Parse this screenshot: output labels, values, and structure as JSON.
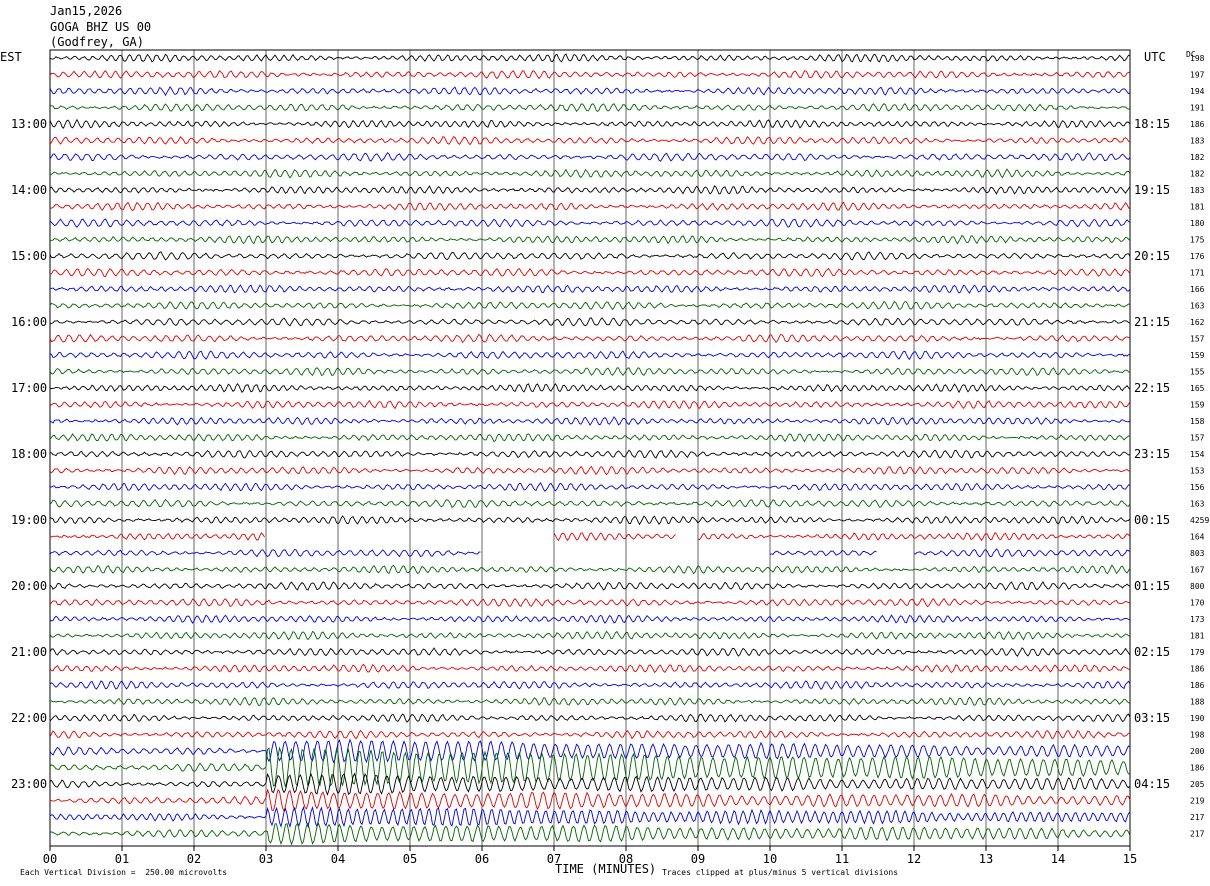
{
  "header": {
    "date": "Jan15,2026",
    "station": "GOGA BHZ US 00",
    "location": "(Godfrey, GA)"
  },
  "left_tz": "EST",
  "right_tz": "UTC",
  "dc_label": "DC",
  "footer": {
    "scale_note": "Each Vertical Division =  250.00 microvolts",
    "clip_note": "Traces clipped at plus/minus 5 vertical divisions"
  },
  "chart_data": {
    "type": "line",
    "title": "",
    "xlabel": "TIME (MINUTES)",
    "x_ticks": [
      "00",
      "01",
      "02",
      "03",
      "04",
      "05",
      "06",
      "07",
      "08",
      "09",
      "10",
      "11",
      "12",
      "13",
      "14",
      "15"
    ],
    "xlim": [
      0,
      15
    ],
    "trace_colors": [
      "#000000",
      "#e00000",
      "#0000e0",
      "#006400"
    ],
    "left_hour_labels": [
      {
        "row": 4,
        "text": "13:00"
      },
      {
        "row": 8,
        "text": "14:00"
      },
      {
        "row": 12,
        "text": "15:00"
      },
      {
        "row": 16,
        "text": "16:00"
      },
      {
        "row": 20,
        "text": "17:00"
      },
      {
        "row": 24,
        "text": "18:00"
      },
      {
        "row": 28,
        "text": "19:00"
      },
      {
        "row": 32,
        "text": "20:00"
      },
      {
        "row": 36,
        "text": "21:00"
      },
      {
        "row": 40,
        "text": "22:00"
      },
      {
        "row": 44,
        "text": "23:00"
      }
    ],
    "right_hour_labels": [
      {
        "row": 4,
        "text": "18:15"
      },
      {
        "row": 8,
        "text": "19:15"
      },
      {
        "row": 12,
        "text": "20:15"
      },
      {
        "row": 16,
        "text": "21:15"
      },
      {
        "row": 20,
        "text": "22:15"
      },
      {
        "row": 24,
        "text": "23:15"
      },
      {
        "row": 28,
        "text": "00:15"
      },
      {
        "row": 32,
        "text": "01:15"
      },
      {
        "row": 36,
        "text": "02:15"
      },
      {
        "row": 40,
        "text": "03:15"
      },
      {
        "row": 44,
        "text": "04:15"
      }
    ],
    "dc_offsets": [
      "198",
      "197",
      "194",
      "191",
      "186",
      "183",
      "182",
      "182",
      "183",
      "181",
      "180",
      "175",
      "176",
      "171",
      "166",
      "163",
      "162",
      "157",
      "159",
      "155",
      "165",
      "159",
      "158",
      "157",
      "154",
      "153",
      "156",
      "163",
      "4259",
      "164",
      "803",
      "167",
      "800",
      "170",
      "173",
      "181",
      "179",
      "186",
      "186",
      "188",
      "190",
      "198",
      "200",
      "186",
      "205",
      "219",
      "217",
      "217"
    ],
    "gaps": [
      {
        "row": 29,
        "from_min": 3.0,
        "to_min": 7.0
      },
      {
        "row": 29,
        "from_min": 8.7,
        "to_min": 9.0
      },
      {
        "row": 30,
        "from_min": 6.0,
        "to_min": 10.0
      },
      {
        "row": 30,
        "from_min": 11.5,
        "to_min": 12.0
      }
    ]
  }
}
